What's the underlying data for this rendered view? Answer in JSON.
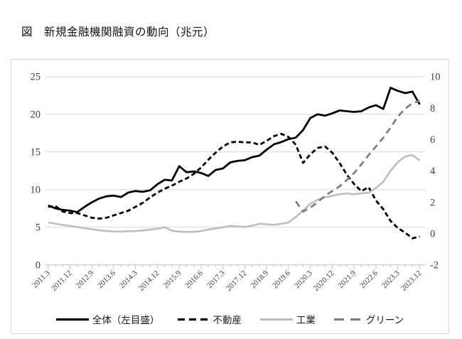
{
  "title": "図　新規金融機関融資の動向（兆元）",
  "colors": {
    "grid": "#d9d9d9",
    "axis": "#bfbfbf",
    "tick_label": "#404040",
    "frame": "#d9d9d9",
    "total_line": "#000000",
    "real_estate_line": "#000000",
    "industry_line": "#bfbfbf",
    "green_line": "#7f7f7f"
  },
  "chart_data": {
    "type": "line",
    "title": "図　新規金融機関融資の動向（兆元）",
    "unit": "兆元",
    "x_frequency": "quarterly",
    "n_points": 52,
    "x_start": "2011.3",
    "x_end": "2023.12",
    "x_label_every": 3,
    "x_labels": [
      "2011.3",
      "2011.12",
      "2012.9",
      "2013.6",
      "2014.3",
      "2014.12",
      "2015.9",
      "2016.6",
      "2017.3",
      "2017.12",
      "2018.9",
      "2019.6",
      "2020.3",
      "2020.12",
      "2021.9",
      "2022.6",
      "2023.3",
      "2023.12"
    ],
    "left_axis": {
      "min": 0,
      "max": 25,
      "ticks": [
        25,
        20,
        15,
        10,
        5,
        0
      ]
    },
    "right_axis": {
      "min": -2,
      "max": 10,
      "ticks": [
        10,
        8,
        6,
        4,
        2,
        0,
        -2
      ]
    },
    "grid": true,
    "legend_position": "bottom",
    "series": [
      {
        "key": "total",
        "name": "全体（左目盛）",
        "axis": "left",
        "color": "#000000",
        "width": 2.8,
        "dash": "",
        "legend_dash": "",
        "legend_len": 46,
        "values": [
          7.9,
          7.5,
          7.3,
          7.2,
          7.0,
          7.7,
          8.3,
          8.8,
          9.1,
          9.2,
          9.0,
          9.6,
          9.8,
          9.7,
          9.9,
          10.7,
          11.3,
          11.2,
          13.1,
          12.3,
          12.4,
          12.2,
          11.8,
          12.6,
          12.8,
          13.6,
          13.8,
          13.9,
          14.3,
          14.5,
          15.3,
          16.0,
          16.3,
          16.7,
          16.9,
          17.9,
          19.5,
          20.0,
          19.8,
          20.1,
          20.5,
          20.4,
          20.3,
          20.4,
          20.9,
          21.2,
          20.7,
          23.5,
          23.1,
          22.8,
          23.0,
          21.3
        ]
      },
      {
        "key": "real-estate",
        "name": "不動産",
        "axis": "right",
        "color": "#000000",
        "width": 2.8,
        "dash": "6.5 4",
        "legend_dash": "10 6",
        "legend_len": 44,
        "values": [
          1.7,
          1.75,
          1.4,
          1.3,
          1.3,
          1.15,
          1.0,
          0.95,
          1.0,
          1.15,
          1.3,
          1.45,
          1.7,
          1.95,
          2.3,
          2.6,
          2.85,
          3.05,
          3.3,
          3.5,
          3.8,
          4.2,
          4.7,
          5.15,
          5.55,
          5.8,
          5.85,
          5.8,
          5.8,
          5.65,
          5.9,
          6.2,
          6.35,
          6.15,
          5.65,
          4.5,
          5.05,
          5.45,
          5.55,
          5.15,
          4.5,
          3.75,
          3.15,
          2.7,
          2.95,
          2.1,
          1.55,
          0.8,
          0.35,
          0.05,
          -0.3,
          -0.2
        ]
      },
      {
        "key": "industry",
        "name": "工業",
        "axis": "right",
        "color": "#bfbfbf",
        "width": 2.7,
        "dash": "",
        "legend_dash": "",
        "legend_len": 46,
        "values": [
          0.7,
          0.62,
          0.55,
          0.48,
          0.42,
          0.33,
          0.27,
          0.2,
          0.16,
          0.13,
          0.12,
          0.14,
          0.15,
          0.19,
          0.25,
          0.3,
          0.4,
          0.18,
          0.12,
          0.1,
          0.1,
          0.15,
          0.25,
          0.32,
          0.4,
          0.48,
          0.45,
          0.42,
          0.5,
          0.62,
          0.58,
          0.55,
          0.62,
          0.7,
          1.05,
          1.45,
          1.9,
          2.15,
          2.3,
          2.4,
          2.5,
          2.55,
          2.5,
          2.55,
          2.6,
          2.9,
          3.3,
          4.0,
          4.55,
          4.9,
          5.0,
          4.65
        ]
      },
      {
        "key": "green",
        "name": "グリーン",
        "axis": "right",
        "color": "#7f7f7f",
        "width": 2.8,
        "dash": "9 6",
        "legend_dash": "14 9",
        "legend_len": 40,
        "values": [
          null,
          null,
          null,
          null,
          null,
          null,
          null,
          null,
          null,
          null,
          null,
          null,
          null,
          null,
          null,
          null,
          null,
          null,
          null,
          null,
          null,
          null,
          null,
          null,
          null,
          null,
          null,
          null,
          null,
          null,
          null,
          null,
          null,
          null,
          2.05,
          1.4,
          1.65,
          2.0,
          2.4,
          2.7,
          3.0,
          3.4,
          3.85,
          4.4,
          5.0,
          5.55,
          6.1,
          6.75,
          7.45,
          7.95,
          8.3,
          8.45
        ]
      }
    ]
  }
}
